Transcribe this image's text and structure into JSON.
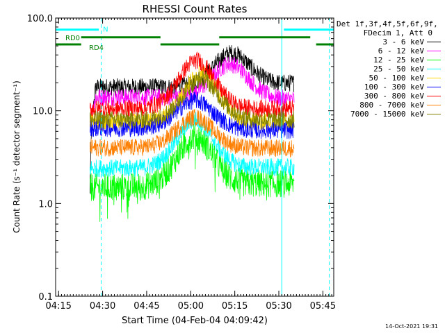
{
  "chart_data": {
    "type": "line",
    "title": "RHESSI Count Rates",
    "xlabel": "Start Time (04-Feb-04 04:09:42)",
    "ylabel": "Count Rate (s⁻¹ detector segment⁻¹)",
    "yscale": "log",
    "ylim": [
      0.1,
      100.0
    ],
    "xlim_minutes": [
      4.3,
      99.0
    ],
    "x_tick_labels": [
      "04:15",
      "04:30",
      "04:45",
      "05:00",
      "05:15",
      "05:30",
      "05:45"
    ],
    "x_tick_minutes": [
      5.3,
      20.3,
      35.3,
      50.3,
      65.3,
      80.3,
      95.3
    ],
    "y_tick_labels": [
      "0.1",
      "1.0",
      "10.0",
      "100.0"
    ],
    "y_tick_values": [
      0.1,
      1.0,
      10.0,
      100.0
    ],
    "data_start_minutes": 16.0,
    "data_end_minutes": 85.5,
    "series": [
      {
        "name": "3 - 6 keV",
        "color": "#000000",
        "pre": [
          1.2,
          18.0
        ],
        "peak": 42.0,
        "post": 25.0,
        "peak_minutes": 64.5
      },
      {
        "name": "6 - 12 keV",
        "color": "#ff00ff",
        "pre": [
          7.5,
          14.0
        ],
        "peak": 32.0,
        "post": 12.0,
        "peak_minutes": 64.0
      },
      {
        "name": "12 - 25 keV",
        "color": "#00ff00",
        "pre": [
          1.5
        ],
        "peak": 5.3,
        "post": 2.0,
        "peak_minutes": 52.0
      },
      {
        "name": "25 - 50 keV",
        "color": "#00ffff",
        "pre": [
          2.4
        ],
        "peak": 8.0,
        "post": 2.6,
        "peak_minutes": 52.0
      },
      {
        "name": "50 - 100 keV",
        "color": "#ffd700",
        "pre": [
          7.5
        ],
        "peak": 25.0,
        "post": 7.5,
        "peak_minutes": 54.0
      },
      {
        "name": "100 - 300 keV",
        "color": "#0000ff",
        "pre": [
          6.5
        ],
        "peak": 13.0,
        "post": 5.5,
        "peak_minutes": 52.0
      },
      {
        "name": "300 - 800 keV",
        "color": "#ff0000",
        "pre": [
          10.5
        ],
        "peak": 35.0,
        "post": 10.5,
        "peak_minutes": 52.5
      },
      {
        "name": "800 - 7000 keV",
        "color": "#ff7f00",
        "pre": [
          4.0
        ],
        "peak": 8.5,
        "post": 3.8,
        "peak_minutes": 52.0
      },
      {
        "name": "7000 - 15000 keV",
        "color": "#808000",
        "pre": [
          8.0
        ],
        "peak": 22.0,
        "post": 8.0,
        "peak_minutes": 54.0
      }
    ],
    "flag_bars": [
      {
        "label": "N",
        "color": "#00ffff",
        "value": 75.0,
        "segments": [
          [
            4.3,
            19.0
          ],
          [
            82.0,
            99.0
          ]
        ]
      },
      {
        "label": "RD0",
        "color": "#008000",
        "value": 62.0,
        "segments": [
          [
            13.0,
            40.0
          ],
          [
            60.0,
            91.0
          ]
        ]
      },
      {
        "label": "RD4",
        "color": "#008000",
        "value": 52.0,
        "segments": [
          [
            4.3,
            13.0
          ],
          [
            40.0,
            60.0
          ],
          [
            93.0,
            99.0
          ]
        ]
      }
    ],
    "vertical_markers": [
      {
        "minutes": 4.3,
        "style": "solid",
        "color": "#00ffff"
      },
      {
        "minutes": 19.8,
        "style": "dashed",
        "color": "#00ffff"
      },
      {
        "minutes": 81.3,
        "style": "solid",
        "color": "#00ffff"
      },
      {
        "minutes": 97.5,
        "style": "dashed",
        "color": "#00ffff"
      }
    ]
  },
  "legend": {
    "header_line1": "Det 1f,3f,4f,5f,6f,9f,",
    "header_line2": "FDecim 1, Att 0"
  },
  "footer": {
    "timestamp": "14-Oct-2021 19:31"
  }
}
